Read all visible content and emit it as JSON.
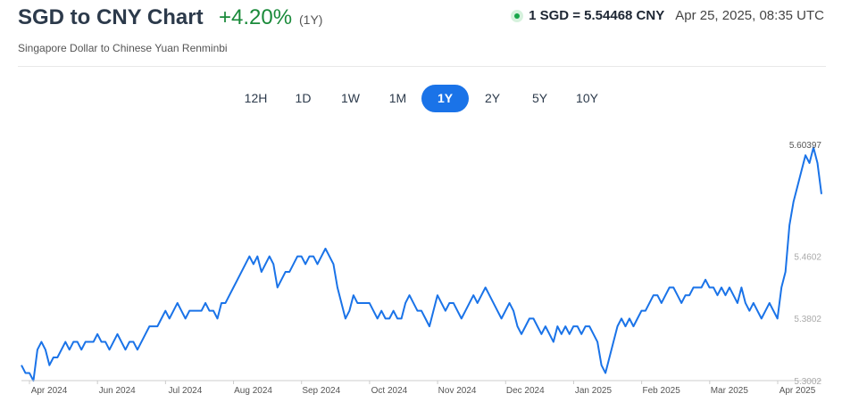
{
  "header": {
    "title": "SGD to CNY Chart",
    "change": "+4.20%",
    "period": "(1Y)",
    "subtitle": "Singapore Dollar to Chinese Yuan Renminbi",
    "rate": "1 SGD = 5.54468 CNY",
    "timestamp": "Apr 25, 2025, 08:35 UTC"
  },
  "tabs": [
    "12H",
    "1D",
    "1W",
    "1M",
    "1Y",
    "2Y",
    "5Y",
    "10Y"
  ],
  "active_tab": "1Y",
  "colors": {
    "line": "#1a73e8",
    "positive": "#1a8a3a",
    "active_tab": "#1a73e8",
    "live": "#19a64a"
  },
  "chart_data": {
    "type": "line",
    "title": "",
    "xlabel": "",
    "ylabel": "",
    "x_ticks": [
      "Apr 2024",
      "Jun 2024",
      "Jul 2024",
      "Aug 2024",
      "Sep 2024",
      "Oct 2024",
      "Nov 2024",
      "Dec 2024",
      "Jan 2025",
      "Feb 2025",
      "Mar 2025",
      "Apr 2025"
    ],
    "y_ticks": [
      "5.60397",
      "5.4602",
      "5.3802",
      "5.3002"
    ],
    "ylim": [
      5.3002,
      5.60397
    ],
    "grid": false,
    "series": [
      {
        "values": [
          5.32,
          5.31,
          5.31,
          5.3,
          5.34,
          5.35,
          5.34,
          5.32,
          5.33,
          5.33,
          5.34,
          5.35,
          5.34,
          5.35,
          5.35,
          5.34,
          5.35,
          5.35,
          5.35,
          5.36,
          5.35,
          5.35,
          5.34,
          5.35,
          5.36,
          5.35,
          5.34,
          5.35,
          5.35,
          5.34,
          5.35,
          5.36,
          5.37,
          5.37,
          5.37,
          5.38,
          5.39,
          5.38,
          5.39,
          5.4,
          5.39,
          5.38,
          5.39,
          5.39,
          5.39,
          5.39,
          5.4,
          5.39,
          5.39,
          5.38,
          5.4,
          5.4,
          5.41,
          5.42,
          5.43,
          5.44,
          5.45,
          5.46,
          5.45,
          5.46,
          5.44,
          5.45,
          5.46,
          5.45,
          5.42,
          5.43,
          5.44,
          5.44,
          5.45,
          5.46,
          5.46,
          5.45,
          5.46,
          5.46,
          5.45,
          5.46,
          5.47,
          5.46,
          5.45,
          5.42,
          5.4,
          5.38,
          5.39,
          5.41,
          5.4,
          5.4,
          5.4,
          5.4,
          5.39,
          5.38,
          5.39,
          5.38,
          5.38,
          5.39,
          5.38,
          5.38,
          5.4,
          5.41,
          5.4,
          5.39,
          5.39,
          5.38,
          5.37,
          5.39,
          5.41,
          5.4,
          5.39,
          5.4,
          5.4,
          5.39,
          5.38,
          5.39,
          5.4,
          5.41,
          5.4,
          5.41,
          5.42,
          5.41,
          5.4,
          5.39,
          5.38,
          5.39,
          5.4,
          5.39,
          5.37,
          5.36,
          5.37,
          5.38,
          5.38,
          5.37,
          5.36,
          5.37,
          5.36,
          5.35,
          5.37,
          5.36,
          5.37,
          5.36,
          5.37,
          5.37,
          5.36,
          5.37,
          5.37,
          5.36,
          5.35,
          5.32,
          5.31,
          5.33,
          5.35,
          5.37,
          5.38,
          5.37,
          5.38,
          5.37,
          5.38,
          5.39,
          5.39,
          5.4,
          5.41,
          5.41,
          5.4,
          5.41,
          5.42,
          5.42,
          5.41,
          5.4,
          5.41,
          5.41,
          5.42,
          5.42,
          5.42,
          5.43,
          5.42,
          5.42,
          5.41,
          5.42,
          5.41,
          5.42,
          5.41,
          5.4,
          5.42,
          5.4,
          5.39,
          5.4,
          5.39,
          5.38,
          5.39,
          5.4,
          5.39,
          5.38,
          5.42,
          5.44,
          5.5,
          5.53,
          5.55,
          5.57,
          5.59,
          5.58,
          5.6,
          5.58,
          5.54
        ]
      }
    ]
  }
}
